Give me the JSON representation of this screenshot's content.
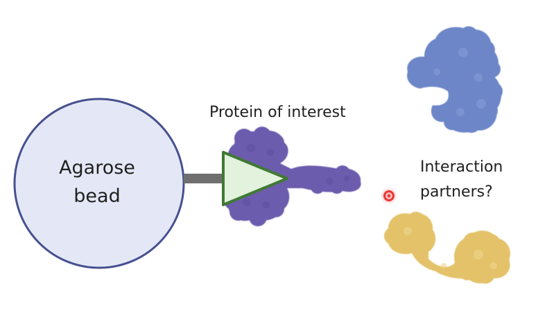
{
  "bead": {
    "label_line1": "Agarose",
    "label_line2": "bead"
  },
  "protein_of_interest": {
    "label": "Protein of interest"
  },
  "partners": {
    "label_line1": "Interaction",
    "label_line2": "partners?"
  },
  "colors": {
    "bead_fill": "#e4e8f6",
    "bead_stroke": "#46508f",
    "linker": "#6f6f6f",
    "protein_purple": "#6c5bad",
    "tag_fill": "#e2f2dc",
    "tag_stroke": "#3f7a33",
    "partner_blue": "#6d86c8",
    "partner_yellow": "#e3c269",
    "cursor_red": "#e53935"
  }
}
